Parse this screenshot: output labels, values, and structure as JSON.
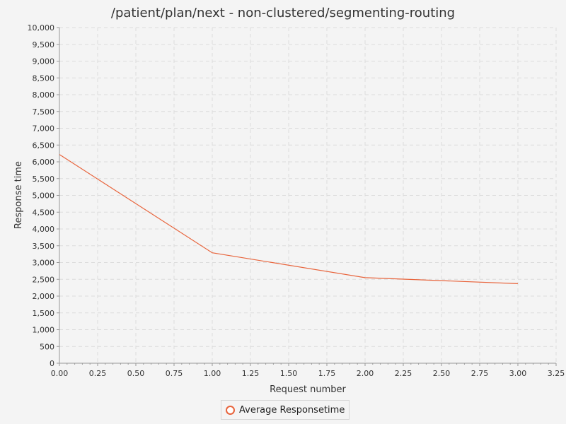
{
  "chart_data": {
    "type": "line",
    "title": "/patient/plan/next - non-clustered/segmenting-routing",
    "xlabel": "Request number",
    "ylabel": "Response time",
    "xlim": [
      0,
      3.25
    ],
    "ylim": [
      0,
      10000
    ],
    "x_ticks": [
      "0.00",
      "0.25",
      "0.50",
      "0.75",
      "1.00",
      "1.25",
      "1.50",
      "1.75",
      "2.00",
      "2.25",
      "2.50",
      "2.75",
      "3.00",
      "3.25"
    ],
    "y_ticks": [
      "0",
      "500",
      "1,000",
      "1,500",
      "2,000",
      "2,500",
      "3,000",
      "3,500",
      "4,000",
      "4,500",
      "5,000",
      "5,500",
      "6,000",
      "6,500",
      "7,000",
      "7,500",
      "8,000",
      "8,500",
      "9,000",
      "9,500",
      "10,000"
    ],
    "grid": true,
    "legend_position": "bottom-center",
    "series": [
      {
        "name": "Average Responsetime",
        "color": "#e8643c",
        "x": [
          0,
          1,
          2,
          3
        ],
        "y": [
          6220,
          3290,
          2550,
          2370
        ]
      }
    ]
  }
}
